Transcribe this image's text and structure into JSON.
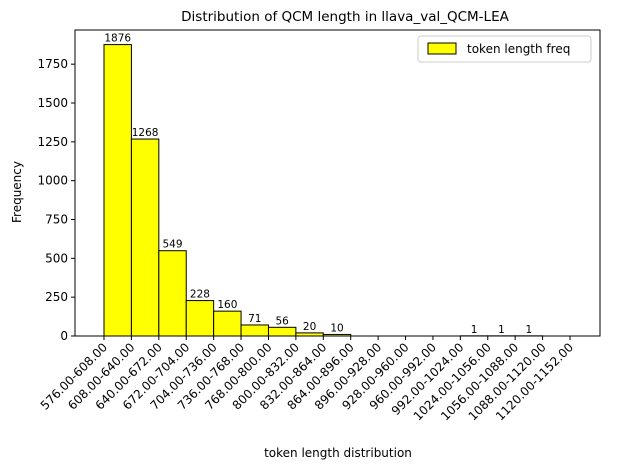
{
  "chart_data": {
    "type": "bar",
    "title": "Distribution of QCM length in llava_val_QCM-LEA",
    "xlabel": "token length distribution",
    "ylabel": "Frequency",
    "categories": [
      "576.00-608.00",
      "608.00-640.00",
      "640.00-672.00",
      "672.00-704.00",
      "704.00-736.00",
      "736.00-768.00",
      "768.00-800.00",
      "800.00-832.00",
      "832.00-864.00",
      "864.00-896.00",
      "896.00-928.00",
      "928.00-960.00",
      "960.00-992.00",
      "992.00-1024.00",
      "1024.00-1056.00",
      "1056.00-1088.00",
      "1088.00-1120.00",
      "1120.00-1152.00"
    ],
    "series": [
      {
        "name": "token length freq",
        "values": [
          1876,
          1268,
          549,
          228,
          160,
          71,
          56,
          20,
          10,
          0,
          0,
          0,
          0,
          1,
          1,
          1,
          0,
          0
        ],
        "labels": [
          "1876",
          "1268",
          "549",
          "228",
          "160",
          "71",
          "56",
          "20",
          "10",
          "",
          "",
          "",
          "",
          "1",
          "1",
          "1",
          "",
          ""
        ],
        "color": "#ffff00",
        "edgecolor": "#000000"
      }
    ],
    "ylim": [
      0,
      1970
    ],
    "yticks": [
      0,
      250,
      500,
      750,
      1000,
      1250,
      1500,
      1750
    ],
    "yticklabels": [
      "0",
      "250",
      "500",
      "750",
      "1000",
      "1250",
      "1500",
      "1750"
    ],
    "grid": false,
    "legend_position": "top-right"
  }
}
